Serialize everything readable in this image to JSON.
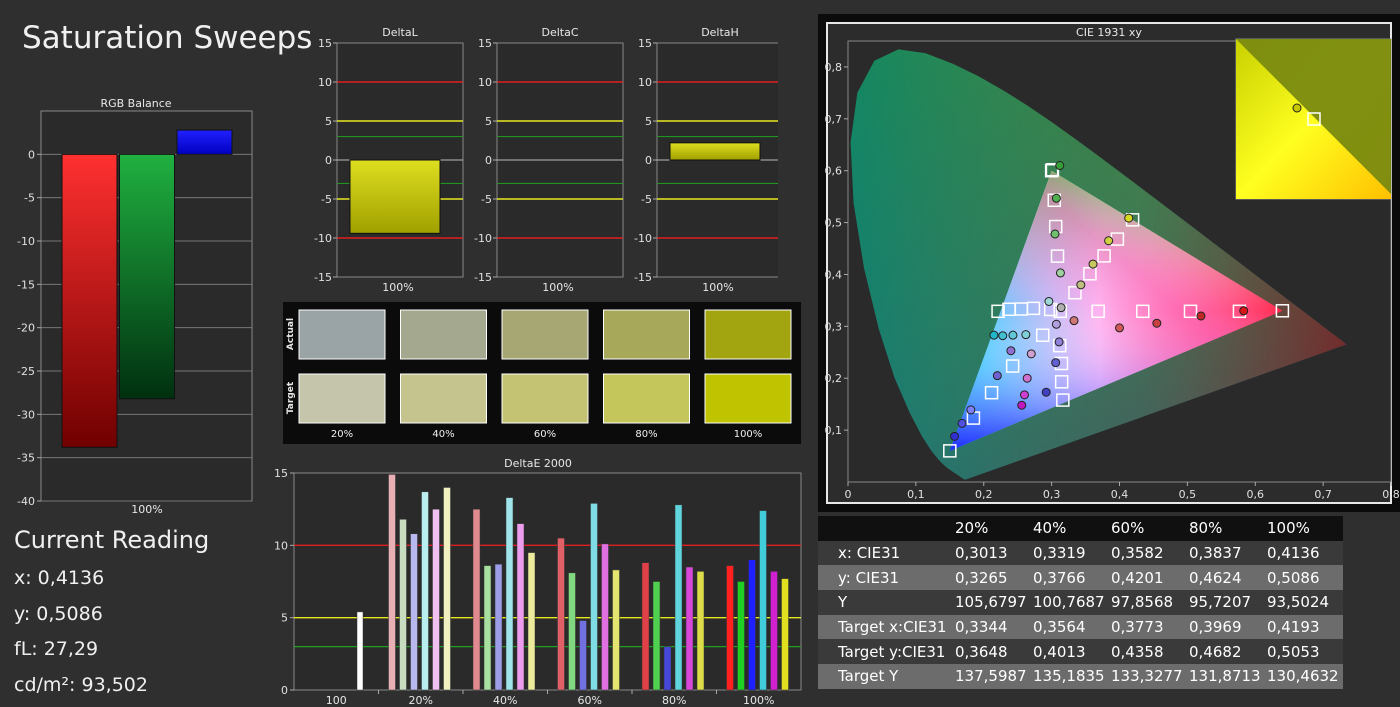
{
  "page": {
    "title": "Saturation Sweeps"
  },
  "reading": {
    "title": "Current Reading",
    "x": "x: 0,4136",
    "y": "y: 0,5086",
    "fl": "fL: 27,29",
    "cdm2": "cd/m²: 93,502"
  },
  "chart_data": [
    {
      "id": "rgb-balance",
      "type": "bar",
      "title": "RGB Balance",
      "categories": [
        "100%"
      ],
      "series": [
        {
          "color": "#ff2020",
          "values": [
            -33.8
          ]
        },
        {
          "color": "#10a030",
          "values": [
            -28.2
          ]
        },
        {
          "color": "#1010ff",
          "values": [
            2.8
          ]
        }
      ],
      "ylim": [
        -40,
        5
      ],
      "yticks": [
        "0",
        "-5",
        "-10",
        "-15",
        "-20",
        "-25",
        "-30",
        "-35",
        "-40"
      ],
      "grid": true
    },
    {
      "id": "deltaL",
      "type": "bar",
      "title": "DeltaL",
      "categories": [
        "100%"
      ],
      "values": [
        -9.4
      ],
      "ylim": [
        -15,
        15
      ],
      "yticks": [
        "15",
        "10",
        "5",
        "0",
        "-5",
        "-10",
        "-15"
      ],
      "reference_lines": [
        10,
        5,
        3,
        -3,
        -5,
        -10
      ]
    },
    {
      "id": "deltaC",
      "type": "bar",
      "title": "DeltaC",
      "categories": [
        "100%"
      ],
      "values": [
        0
      ],
      "ylim": [
        -15,
        15
      ],
      "yticks": [
        "15",
        "10",
        "5",
        "0",
        "-5",
        "-10",
        "-15"
      ],
      "reference_lines": [
        10,
        5,
        3,
        -3,
        -5,
        -10
      ]
    },
    {
      "id": "deltaH",
      "type": "bar",
      "title": "DeltaH",
      "categories": [
        "100%"
      ],
      "values": [
        2.2
      ],
      "ylim": [
        -15,
        15
      ],
      "yticks": [
        "15",
        "10",
        "5",
        "0",
        "-5",
        "-10",
        "-15"
      ],
      "reference_lines": [
        10,
        5,
        3,
        -3,
        -5,
        -10
      ]
    },
    {
      "id": "swatches",
      "type": "table",
      "rows": [
        "Actual",
        "Target"
      ],
      "columns": [
        "20%",
        "40%",
        "60%",
        "80%",
        "100%"
      ],
      "actual_colors": [
        "#9aa4a6",
        "#a4a88e",
        "#a6a772",
        "#a7a859",
        "#a3a510"
      ],
      "target_colors": [
        "#c4c5aa",
        "#c5c48e",
        "#c4c373",
        "#c4c55a",
        "#c0c300"
      ]
    },
    {
      "id": "deltaE",
      "type": "bar",
      "title": "DeltaE 2000",
      "categories": [
        "100",
        "20%",
        "40%",
        "60%",
        "80%",
        "100%"
      ],
      "ylim": [
        0,
        15
      ],
      "yticks": [
        "15",
        "10",
        "5",
        "0"
      ],
      "reference_lines": [
        10,
        5,
        3
      ],
      "groups": [
        {
          "values": [
            5.4
          ],
          "colors": [
            "#ffffff"
          ]
        },
        {
          "values": [
            14.9,
            11.8,
            10.8,
            13.7,
            12.5,
            14.0
          ],
          "colors": [
            "#e8b0b4",
            "#c8ddc0",
            "#b8b8ee",
            "#b8eef0",
            "#f0c0f0",
            "#f0f0c0"
          ]
        },
        {
          "values": [
            12.5,
            8.6,
            8.7,
            13.3,
            11.5,
            9.5
          ],
          "colors": [
            "#e08a90",
            "#a8e0a0",
            "#9c9ce8",
            "#9ee4ea",
            "#ec9cec",
            "#ecec9c"
          ]
        },
        {
          "values": [
            10.5,
            8.1,
            4.8,
            12.9,
            10.1,
            8.3
          ],
          "colors": [
            "#e06068",
            "#80d880",
            "#7070e0",
            "#80dce4",
            "#e070e0",
            "#e4e470"
          ]
        },
        {
          "values": [
            8.8,
            7.5,
            3.0,
            12.8,
            8.5,
            8.2
          ],
          "colors": [
            "#e04048",
            "#50d050",
            "#4848d8",
            "#60d4dc",
            "#d848d8",
            "#dcdc48"
          ]
        },
        {
          "values": [
            8.6,
            7.5,
            9.0,
            12.4,
            8.2,
            7.7
          ],
          "colors": [
            "#ff2020",
            "#20d020",
            "#2020ff",
            "#40ccd8",
            "#d020d0",
            "#e0e020"
          ]
        }
      ]
    },
    {
      "id": "cie",
      "type": "scatter",
      "title": "CIE 1931 xy",
      "xlim": [
        0,
        0.8
      ],
      "ylim": [
        0,
        0.85
      ],
      "xticks": [
        "0",
        "0,1",
        "0,2",
        "0,3",
        "0,4",
        "0,5",
        "0,6",
        "0,7",
        "0,8"
      ],
      "yticks": [
        "0,1",
        "0,2",
        "0,3",
        "0,4",
        "0,5",
        "0,6",
        "0,7",
        "0,8"
      ],
      "white": [
        0.3127,
        0.329
      ],
      "gamut": {
        "r": [
          0.64,
          0.33
        ],
        "g": [
          0.3,
          0.6
        ],
        "b": [
          0.15,
          0.06
        ]
      },
      "targets": [
        [
          0.3127,
          0.329
        ],
        [
          0.3685,
          0.329
        ],
        [
          0.4343,
          0.329
        ],
        [
          0.5046,
          0.329
        ],
        [
          0.5767,
          0.329
        ],
        [
          0.64,
          0.33
        ],
        [
          0.3087,
          0.4354
        ],
        [
          0.306,
          0.4924
        ],
        [
          0.3039,
          0.543
        ],
        [
          0.3012,
          0.6018
        ],
        [
          0.3,
          0.6
        ],
        [
          0.3119,
          0.2628
        ],
        [
          0.3145,
          0.2284
        ],
        [
          0.3148,
          0.1931
        ],
        [
          0.3165,
          0.1579
        ],
        [
          0.2986,
          0.3325
        ],
        [
          0.2732,
          0.3347
        ],
        [
          0.2554,
          0.3334
        ],
        [
          0.2372,
          0.3329
        ],
        [
          0.2211,
          0.329
        ],
        [
          0.2869,
          0.2829
        ],
        [
          0.2426,
          0.2235
        ],
        [
          0.2115,
          0.1721
        ],
        [
          0.1848,
          0.1232
        ],
        [
          0.15,
          0.06
        ],
        [
          0.3344,
          0.3648
        ],
        [
          0.3564,
          0.4013
        ],
        [
          0.3773,
          0.4358
        ],
        [
          0.3969,
          0.4682
        ],
        [
          0.4193,
          0.5053
        ]
      ],
      "measured": [
        {
          "x": 0.314,
          "y": 0.336,
          "color": "#b0b0b0"
        },
        {
          "x": 0.333,
          "y": 0.311,
          "color": "#d07878"
        },
        {
          "x": 0.4,
          "y": 0.297,
          "color": "#d05858"
        },
        {
          "x": 0.455,
          "y": 0.306,
          "color": "#c84040"
        },
        {
          "x": 0.52,
          "y": 0.32,
          "color": "#c02828"
        },
        {
          "x": 0.583,
          "y": 0.33,
          "color": "#d81818"
        },
        {
          "x": 0.313,
          "y": 0.403,
          "color": "#a0d0a0"
        },
        {
          "x": 0.305,
          "y": 0.478,
          "color": "#70c070"
        },
        {
          "x": 0.307,
          "y": 0.547,
          "color": "#50b050"
        },
        {
          "x": 0.312,
          "y": 0.61,
          "color": "#38a038"
        },
        {
          "x": 0.307,
          "y": 0.304,
          "color": "#b0a0e0"
        },
        {
          "x": 0.311,
          "y": 0.27,
          "color": "#9080d8"
        },
        {
          "x": 0.306,
          "y": 0.23,
          "color": "#6060d0"
        },
        {
          "x": 0.292,
          "y": 0.173,
          "color": "#4040c0"
        },
        {
          "x": 0.296,
          "y": 0.348,
          "color": "#a0d8d8"
        },
        {
          "x": 0.262,
          "y": 0.284,
          "color": "#80d0d8"
        },
        {
          "x": 0.243,
          "y": 0.283,
          "color": "#60c8d8"
        },
        {
          "x": 0.228,
          "y": 0.282,
          "color": "#40c0d0"
        },
        {
          "x": 0.215,
          "y": 0.283,
          "color": "#20b8c8"
        },
        {
          "x": 0.27,
          "y": 0.247,
          "color": "#d0a0d0"
        },
        {
          "x": 0.264,
          "y": 0.2,
          "color": "#d070d0"
        },
        {
          "x": 0.26,
          "y": 0.168,
          "color": "#d040d0"
        },
        {
          "x": 0.256,
          "y": 0.148,
          "color": "#c018c0"
        },
        {
          "x": 0.343,
          "y": 0.38,
          "color": "#c0c080"
        },
        {
          "x": 0.361,
          "y": 0.42,
          "color": "#c8c860"
        },
        {
          "x": 0.384,
          "y": 0.465,
          "color": "#d0d040"
        },
        {
          "x": 0.4136,
          "y": 0.5086,
          "color": "#d8d820"
        },
        {
          "x": 0.181,
          "y": 0.139,
          "color": "#8080ff"
        },
        {
          "x": 0.168,
          "y": 0.113,
          "color": "#5050e0"
        },
        {
          "x": 0.157,
          "y": 0.088,
          "color": "#3030d0"
        },
        {
          "x": 0.24,
          "y": 0.253,
          "color": "#9070d0"
        },
        {
          "x": 0.22,
          "y": 0.205,
          "color": "#7060d0"
        }
      ],
      "inset": {
        "target": [
          0.4193,
          0.5053
        ],
        "measured": [
          0.4136,
          0.5086
        ]
      }
    }
  ],
  "table": {
    "headers": [
      "",
      "20%",
      "40%",
      "60%",
      "80%",
      "100%"
    ],
    "rows": [
      {
        "label": "x: CIE31",
        "values": [
          "0,3013",
          "0,3319",
          "0,3582",
          "0,3837",
          "0,4136"
        ]
      },
      {
        "label": "y: CIE31",
        "values": [
          "0,3265",
          "0,3766",
          "0,4201",
          "0,4624",
          "0,5086"
        ]
      },
      {
        "label": "Y",
        "values": [
          "105,6797",
          "100,7687",
          "97,8568",
          "95,7207",
          "93,5024"
        ]
      },
      {
        "label": "Target x:CIE31",
        "values": [
          "0,3344",
          "0,3564",
          "0,3773",
          "0,3969",
          "0,4193"
        ]
      },
      {
        "label": "Target y:CIE31",
        "values": [
          "0,3648",
          "0,4013",
          "0,4358",
          "0,4682",
          "0,5053"
        ]
      },
      {
        "label": "Target Y",
        "values": [
          "137,5987",
          "135,1835",
          "133,3277",
          "131,8713",
          "130,4632"
        ]
      }
    ]
  }
}
